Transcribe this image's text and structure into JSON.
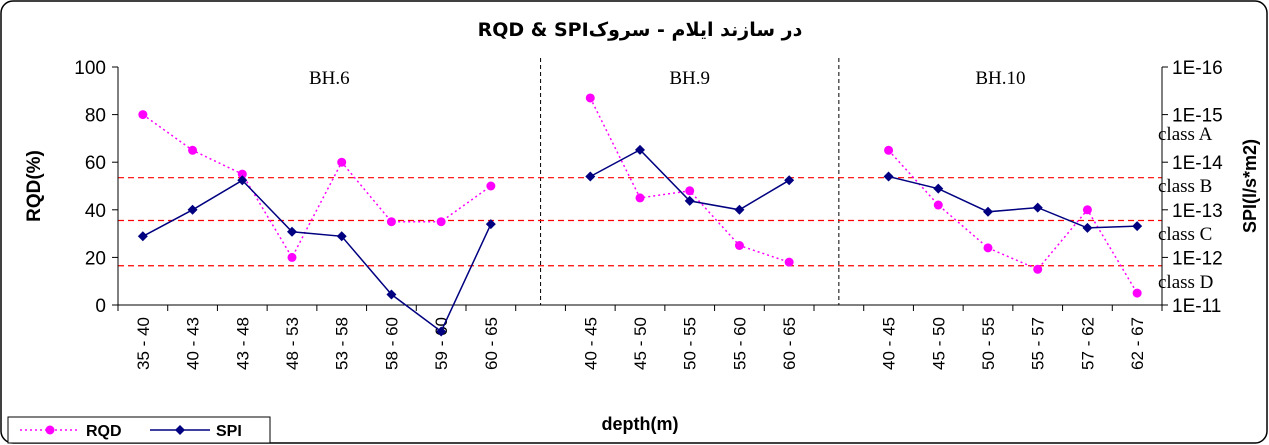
{
  "chart_data": {
    "type": "line",
    "title": "RQD & SPIدر سازند ایلام - سروک",
    "xlabel": "depth(m)",
    "ylabel": "RQD(%)",
    "y2label": "SPI(l/s*m2)",
    "ylim": [
      0,
      100
    ],
    "yticks": [
      "100",
      "80",
      "60",
      "40",
      "20",
      "0"
    ],
    "y2scale": "log",
    "y2ticks": [
      "1E-16",
      "1E-15",
      "1E-14",
      "1E-13",
      "1E-12",
      "1E-11"
    ],
    "groups": [
      {
        "name": "BH.6",
        "categories": [
          "35 - 40",
          "40 - 43",
          "43 - 48",
          "48 - 53",
          "53 - 58",
          "58 - 60",
          "59 - 60",
          "60 - 65"
        ]
      },
      {
        "name": "BH.9",
        "categories": [
          "40 - 45",
          "45 - 50",
          "50 - 55",
          "55 - 60",
          "60 - 65"
        ]
      },
      {
        "name": "BH.10",
        "categories": [
          "40 - 45",
          "45 - 50",
          "50 - 55",
          "55 - 57",
          "57 - 62",
          "62 - 67"
        ]
      }
    ],
    "series": [
      {
        "name": "RQD",
        "axis": "left",
        "color": "#ff00ff",
        "style": "dotted",
        "marker": "circle",
        "values": [
          [
            80,
            65,
            55,
            20,
            60,
            35,
            35,
            50
          ],
          [
            87,
            45,
            48,
            25,
            18
          ],
          [
            65,
            42,
            24,
            15,
            40,
            5
          ]
        ]
      },
      {
        "name": "SPI",
        "axis": "right",
        "color": "#000080",
        "style": "solid",
        "marker": "diamond",
        "values": [
          [
            3.6e-13,
            1e-13,
            2.4e-14,
            2.9e-13,
            3.6e-13,
            6e-12,
            3.6e-11,
            2e-13
          ],
          [
            2e-14,
            5.5e-15,
            6.5e-14,
            1e-13,
            2.4e-14
          ],
          [
            2e-14,
            3.6e-14,
            1.1e-13,
            9e-14,
            2.4e-13,
            2.2e-13
          ]
        ]
      }
    ],
    "class_lines": [
      {
        "label": "class A",
        "rqd": 53.5
      },
      {
        "label": "class B",
        "rqd": 35.5
      },
      {
        "label": "class C",
        "rqd": 16.5
      },
      {
        "label": "class D"
      }
    ],
    "legend": {
      "position": "bottom-left",
      "items": [
        "RQD",
        "SPI"
      ]
    },
    "colors": {
      "class_line": "#ff0000",
      "separator": "#000000",
      "frame": "#000000"
    }
  }
}
